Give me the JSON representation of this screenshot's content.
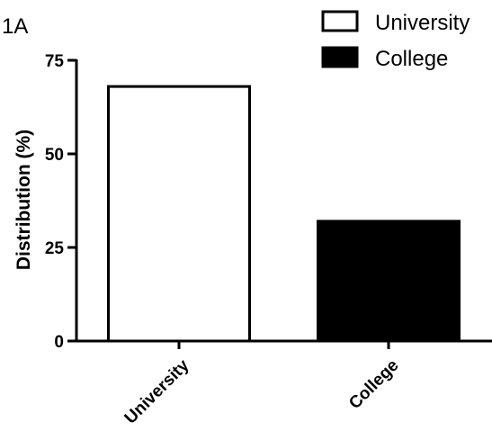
{
  "panel_label": "1A",
  "chart_data": {
    "type": "bar",
    "categories": [
      "University",
      "College"
    ],
    "values": [
      68,
      32
    ],
    "colors": [
      "#ffffff",
      "#000000"
    ],
    "edge_color": "#000000",
    "ylabel": "Distribution (%)",
    "xlabel": "",
    "ylim": [
      0,
      75
    ],
    "yticks": [
      0,
      25,
      50,
      75
    ],
    "ytick_labels": [
      "0",
      "25",
      "50",
      "75"
    ],
    "grid": false,
    "legend": {
      "placement": "top-right",
      "entries": [
        {
          "label": "University",
          "color": "#ffffff"
        },
        {
          "label": "College",
          "color": "#000000"
        }
      ]
    }
  }
}
